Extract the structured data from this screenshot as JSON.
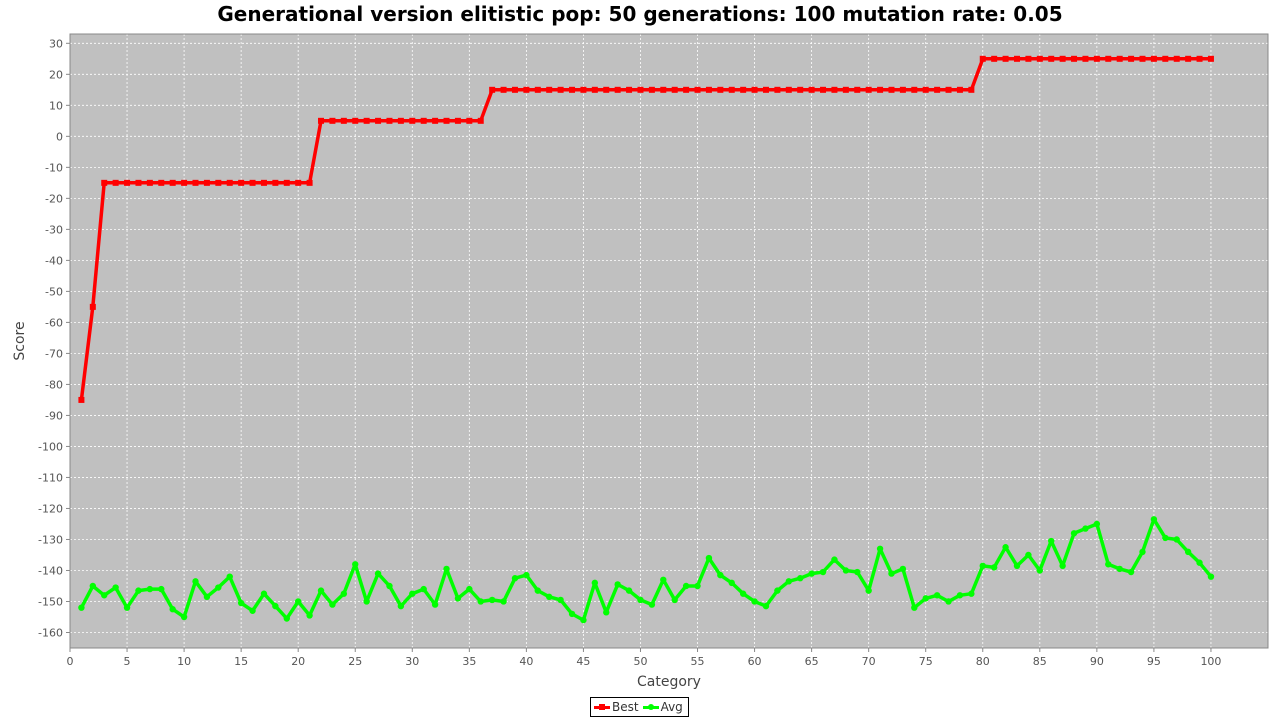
{
  "chart_data": {
    "type": "line",
    "title": "Generational version elitistic pop: 50 generations: 100 mutation rate: 0.05",
    "xlabel": "Category",
    "ylabel": "Score",
    "xlim": [
      0,
      105
    ],
    "ylim": [
      -165,
      33
    ],
    "x_ticks": [
      0,
      5,
      10,
      15,
      20,
      25,
      30,
      35,
      40,
      45,
      50,
      55,
      60,
      65,
      70,
      75,
      80,
      85,
      90,
      95,
      100
    ],
    "y_ticks": [
      30,
      20,
      10,
      0,
      -10,
      -20,
      -30,
      -40,
      -50,
      -60,
      -70,
      -80,
      -90,
      -100,
      -110,
      -120,
      -130,
      -140,
      -150,
      -160
    ],
    "grid": true,
    "legend_position": "bottom-center",
    "background": "#c0c0c0",
    "x": [
      1,
      2,
      3,
      4,
      5,
      6,
      7,
      8,
      9,
      10,
      11,
      12,
      13,
      14,
      15,
      16,
      17,
      18,
      19,
      20,
      21,
      22,
      23,
      24,
      25,
      26,
      27,
      28,
      29,
      30,
      31,
      32,
      33,
      34,
      35,
      36,
      37,
      38,
      39,
      40,
      41,
      42,
      43,
      44,
      45,
      46,
      47,
      48,
      49,
      50,
      51,
      52,
      53,
      54,
      55,
      56,
      57,
      58,
      59,
      60,
      61,
      62,
      63,
      64,
      65,
      66,
      67,
      68,
      69,
      70,
      71,
      72,
      73,
      74,
      75,
      76,
      77,
      78,
      79,
      80,
      81,
      82,
      83,
      84,
      85,
      86,
      87,
      88,
      89,
      90,
      91,
      92,
      93,
      94,
      95,
      96,
      97,
      98,
      99,
      100
    ],
    "series": [
      {
        "name": "Best",
        "color": "#ff0000",
        "marker": "square",
        "values": [
          -85,
          -55,
          -15,
          -15,
          -15,
          -15,
          -15,
          -15,
          -15,
          -15,
          -15,
          -15,
          -15,
          -15,
          -15,
          -15,
          -15,
          -15,
          -15,
          -15,
          -15,
          5,
          5,
          5,
          5,
          5,
          5,
          5,
          5,
          5,
          5,
          5,
          5,
          5,
          5,
          5,
          15,
          15,
          15,
          15,
          15,
          15,
          15,
          15,
          15,
          15,
          15,
          15,
          15,
          15,
          15,
          15,
          15,
          15,
          15,
          15,
          15,
          15,
          15,
          15,
          15,
          15,
          15,
          15,
          15,
          15,
          15,
          15,
          15,
          15,
          15,
          15,
          15,
          15,
          15,
          15,
          15,
          15,
          15,
          25,
          25,
          25,
          25,
          25,
          25,
          25,
          25,
          25,
          25,
          25,
          25,
          25,
          25,
          25,
          25,
          25,
          25,
          25,
          25,
          25
        ]
      },
      {
        "name": "Avg",
        "color": "#00ff00",
        "marker": "circle",
        "values": [
          -152,
          -145,
          -148,
          -145.5,
          -152,
          -146.5,
          -146,
          -146,
          -152.5,
          -155,
          -143.5,
          -148.5,
          -145.5,
          -142,
          -150.5,
          -153,
          -147.5,
          -151.5,
          -155.5,
          -150,
          -154.5,
          -146.5,
          -151,
          -147.5,
          -138,
          -150,
          -141,
          -145,
          -151.5,
          -147.5,
          -146,
          -151,
          -139.5,
          -149,
          -146,
          -150,
          -149.5,
          -150,
          -142.5,
          -141.5,
          -146.5,
          -148.5,
          -149.5,
          -154,
          -156,
          -144,
          -153.5,
          -144.5,
          -146.5,
          -149.5,
          -151,
          -143,
          -149.5,
          -145,
          -145,
          -136,
          -141.5,
          -144,
          -147.5,
          -150,
          -151.5,
          -146.5,
          -143.5,
          -142.5,
          -141,
          -140.5,
          -136.5,
          -140,
          -140.5,
          -146.5,
          -133,
          -141,
          -139.5,
          -152,
          -149,
          -148,
          -150,
          -148,
          -147.5,
          -138.5,
          -139,
          -132.5,
          -138.5,
          -135,
          -140,
          -130.5,
          -138.5,
          -128,
          -126.5,
          -125,
          -138,
          -139.5,
          -140.5,
          -134,
          -123.5,
          -129.5,
          -130,
          -134,
          -137.5,
          -142
        ]
      }
    ]
  }
}
